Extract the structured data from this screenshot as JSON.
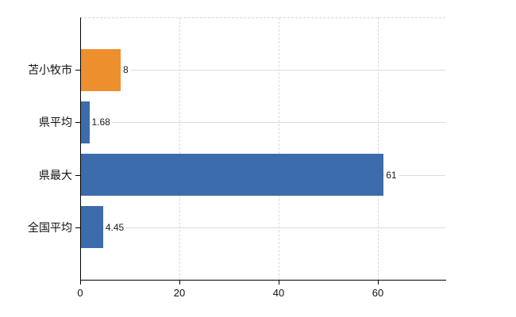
{
  "chart_data": {
    "type": "bar",
    "orientation": "horizontal",
    "title": "",
    "xlabel": "",
    "ylabel": "",
    "categories": [
      "苫小牧市",
      "県平均",
      "県最大",
      "全国平均"
    ],
    "values": [
      8,
      1.68,
      61,
      4.45
    ],
    "value_labels": [
      "8",
      "1.68",
      "61",
      "4.45"
    ],
    "bar_colors": [
      "#ee8f2e",
      "#3c6cab",
      "#3c6cab",
      "#3c6cab"
    ],
    "xlim": [
      0,
      73.6
    ],
    "x_ticks": [
      0,
      20,
      40,
      60
    ],
    "x_tick_labels": [
      "0",
      "20",
      "40",
      "60"
    ],
    "grid": true,
    "legend": null
  },
  "colors": {
    "highlight_bar": "#ee8f2e",
    "default_bar": "#3c6cab",
    "grid": "#d9d9d9",
    "axis": "#000000",
    "text": "#111111",
    "background": "#ffffff"
  }
}
